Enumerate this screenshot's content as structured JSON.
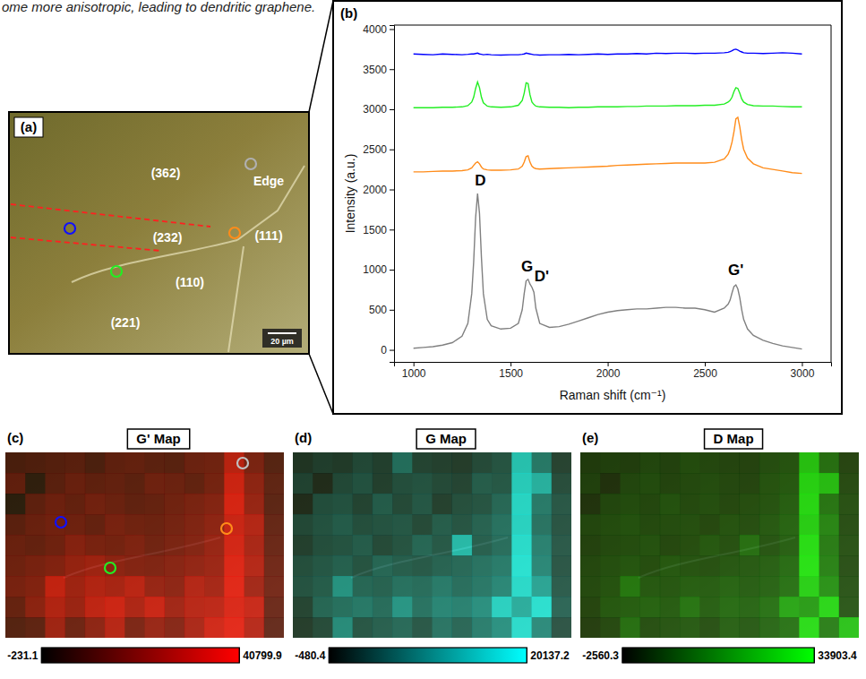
{
  "caption": "ome more anisotropic, leading to dendritic graphene.",
  "micrograph": {
    "panel_label": "(a)",
    "labels": [
      "(362)",
      "Edge",
      "(232)",
      "(111)",
      "(110)",
      "(221)"
    ],
    "scale_bar": "20 µm"
  },
  "chart_data": [
    {
      "type": "line",
      "panel_label": "(b)",
      "x_label": "Raman shift (cm⁻¹)",
      "y_label": "Intensity (a.u.)",
      "x": [
        1000,
        1050,
        1100,
        1150,
        1200,
        1250,
        1280,
        1300,
        1310,
        1320,
        1330,
        1340,
        1350,
        1360,
        1380,
        1400,
        1450,
        1500,
        1540,
        1560,
        1570,
        1580,
        1590,
        1600,
        1610,
        1620,
        1630,
        1650,
        1700,
        1750,
        1800,
        1850,
        1900,
        1950,
        2000,
        2050,
        2100,
        2150,
        2200,
        2250,
        2300,
        2350,
        2400,
        2450,
        2500,
        2550,
        2600,
        2620,
        2630,
        2640,
        2650,
        2660,
        2670,
        2680,
        2690,
        2700,
        2720,
        2750,
        2800,
        2850,
        2900,
        2950,
        3000
      ],
      "series": [
        {
          "color": "#0000ff",
          "values": [
            3690,
            3685,
            3680,
            3690,
            3685,
            3680,
            3685,
            3690,
            3690,
            3695,
            3700,
            3690,
            3685,
            3680,
            3685,
            3680,
            3675,
            3680,
            3680,
            3685,
            3690,
            3700,
            3695,
            3690,
            3685,
            3680,
            3680,
            3675,
            3680,
            3680,
            3685,
            3680,
            3685,
            3690,
            3685,
            3690,
            3690,
            3695,
            3690,
            3700,
            3695,
            3700,
            3700,
            3695,
            3700,
            3700,
            3705,
            3710,
            3720,
            3730,
            3745,
            3750,
            3740,
            3725,
            3715,
            3705,
            3700,
            3700,
            3695,
            3700,
            3705,
            3700,
            3690
          ]
        },
        {
          "color": "#22ee22",
          "values": [
            3020,
            3020,
            3020,
            3025,
            3025,
            3030,
            3045,
            3090,
            3150,
            3260,
            3340,
            3270,
            3150,
            3080,
            3040,
            3030,
            3025,
            3030,
            3050,
            3110,
            3200,
            3330,
            3320,
            3180,
            3090,
            3060,
            3040,
            3030,
            3025,
            3025,
            3020,
            3025,
            3025,
            3030,
            3030,
            3030,
            3035,
            3035,
            3040,
            3040,
            3040,
            3045,
            3045,
            3045,
            3050,
            3050,
            3065,
            3090,
            3110,
            3150,
            3220,
            3270,
            3260,
            3200,
            3130,
            3090,
            3060,
            3045,
            3040,
            3040,
            3035,
            3030,
            3030
          ]
        },
        {
          "color": "#ff8c1a",
          "values": [
            2220,
            2220,
            2225,
            2230,
            2230,
            2235,
            2245,
            2270,
            2300,
            2330,
            2345,
            2320,
            2280,
            2255,
            2245,
            2240,
            2240,
            2245,
            2255,
            2290,
            2340,
            2410,
            2420,
            2340,
            2290,
            2270,
            2260,
            2255,
            2260,
            2265,
            2270,
            2275,
            2280,
            2285,
            2290,
            2300,
            2305,
            2310,
            2315,
            2320,
            2325,
            2330,
            2330,
            2330,
            2330,
            2340,
            2380,
            2440,
            2500,
            2590,
            2720,
            2880,
            2900,
            2780,
            2620,
            2500,
            2390,
            2320,
            2270,
            2250,
            2230,
            2210,
            2200
          ]
        },
        {
          "color": "#808080",
          "values": [
            20,
            30,
            40,
            60,
            90,
            170,
            330,
            700,
            1100,
            1650,
            1950,
            1700,
            1150,
            700,
            380,
            300,
            260,
            270,
            330,
            500,
            700,
            860,
            880,
            820,
            780,
            720,
            520,
            330,
            280,
            290,
            320,
            360,
            400,
            440,
            470,
            490,
            500,
            510,
            510,
            520,
            530,
            530,
            520,
            520,
            500,
            470,
            520,
            570,
            620,
            710,
            790,
            810,
            760,
            650,
            500,
            380,
            260,
            180,
            120,
            80,
            50,
            30,
            10
          ]
        }
      ],
      "xlim": [
        900,
        3150
      ],
      "ylim": [
        -150,
        4050
      ],
      "xticks": [
        1000,
        1500,
        2000,
        2500,
        3000
      ],
      "yticks": [
        0,
        500,
        1000,
        1500,
        2000,
        2500,
        3000,
        3500,
        4000
      ],
      "annotations": [
        {
          "text": "D",
          "x": 1345,
          "y": 2050
        },
        {
          "text": "G",
          "x": 1585,
          "y": 980
        },
        {
          "text": "D'",
          "x": 1660,
          "y": 850
        },
        {
          "text": "G'",
          "x": 2660,
          "y": 930
        }
      ],
      "grid": false
    },
    {
      "type": "heatmap",
      "panel_label": "(c)",
      "title": "G' Map",
      "color": "#ff0000",
      "cells": [
        [
          9000,
          10000,
          11000,
          12000,
          9000,
          13000,
          14000,
          12000,
          11000,
          15000,
          16000,
          32000,
          18000,
          10000
        ],
        [
          14000,
          3000,
          12000,
          15000,
          13000,
          14000,
          12000,
          16000,
          15000,
          13000,
          17000,
          36000,
          22000,
          12000
        ],
        [
          2000,
          13000,
          16000,
          14000,
          17000,
          15000,
          13000,
          14000,
          16000,
          18000,
          20000,
          38000,
          24000,
          11000
        ],
        [
          12000,
          15000,
          17000,
          16000,
          14000,
          18000,
          16000,
          15000,
          17000,
          19000,
          22000,
          35000,
          30000,
          13000
        ],
        [
          15000,
          14000,
          16000,
          21000,
          18000,
          17000,
          19000,
          16000,
          18000,
          20000,
          24000,
          37000,
          28000,
          14000
        ],
        [
          16000,
          18000,
          20000,
          24000,
          26000,
          22000,
          20000,
          19000,
          21000,
          23000,
          25000,
          39000,
          30000,
          15000
        ],
        [
          18000,
          20000,
          34000,
          26000,
          30000,
          28000,
          32000,
          24000,
          22000,
          30000,
          27000,
          40000,
          26000,
          16000
        ],
        [
          14000,
          22000,
          30000,
          25000,
          33000,
          36000,
          29000,
          35000,
          26000,
          31000,
          32000,
          38000,
          34000,
          14000
        ],
        [
          10000,
          12000,
          26000,
          15000,
          22000,
          31000,
          18000,
          24000,
          20000,
          28000,
          36000,
          40000,
          30000,
          12000
        ]
      ],
      "colorbar": {
        "range": [
          -231.1,
          40799.9
        ],
        "ticks": [
          -231.1,
          40799.9
        ]
      }
    },
    {
      "type": "heatmap",
      "panel_label": "(d)",
      "title": "G Map",
      "color": "#00ffff",
      "cells": [
        [
          2000,
          3000,
          2500,
          4000,
          3000,
          8000,
          3500,
          3000,
          2500,
          4000,
          5000,
          17000,
          9000,
          3000
        ],
        [
          3500,
          1000,
          4000,
          5000,
          3000,
          4500,
          5000,
          4000,
          3500,
          6000,
          5500,
          18000,
          15000,
          4000
        ],
        [
          1000,
          4500,
          5000,
          3500,
          6000,
          4000,
          5500,
          3000,
          4500,
          5000,
          7000,
          19000,
          9000,
          5000
        ],
        [
          4000,
          5000,
          6000,
          4500,
          5000,
          5500,
          4000,
          6000,
          5000,
          6500,
          8000,
          18500,
          8000,
          4500
        ],
        [
          3000,
          4500,
          5000,
          6000,
          4000,
          5000,
          7000,
          5500,
          16000,
          6000,
          7500,
          19500,
          9500,
          5000
        ],
        [
          4500,
          5500,
          6500,
          5000,
          7000,
          6000,
          5500,
          6500,
          7000,
          8000,
          9000,
          20000,
          10000,
          4500
        ],
        [
          5000,
          6000,
          12000,
          7000,
          6500,
          8000,
          7500,
          9000,
          7500,
          8500,
          10000,
          19000,
          13000,
          5000
        ],
        [
          3500,
          7000,
          8000,
          9000,
          7500,
          12000,
          8000,
          10000,
          9500,
          11000,
          18000,
          14000,
          19500,
          6000
        ],
        [
          2500,
          4000,
          11000,
          5000,
          6000,
          7000,
          5000,
          8000,
          6500,
          9000,
          11000,
          19000,
          10000,
          4000
        ]
      ],
      "colorbar": {
        "range": [
          -480.4,
          20137.2
        ],
        "ticks": [
          -480.4,
          20137.2
        ]
      }
    },
    {
      "type": "heatmap",
      "panel_label": "(e)",
      "title": "D Map",
      "color": "#00ff00",
      "cells": [
        [
          3000,
          4000,
          3500,
          5000,
          4000,
          6000,
          5000,
          4500,
          4000,
          6000,
          7000,
          28000,
          12000,
          4000
        ],
        [
          4000,
          1000,
          5000,
          6000,
          4500,
          5500,
          6000,
          5000,
          4500,
          7000,
          8000,
          31000,
          27000,
          5000
        ],
        [
          1500,
          5000,
          6000,
          5000,
          7000,
          5500,
          6500,
          5000,
          6000,
          7000,
          9000,
          32000,
          13000,
          6000
        ],
        [
          5000,
          6000,
          7000,
          5500,
          6000,
          6500,
          5000,
          7000,
          6000,
          8000,
          10000,
          30000,
          16000,
          5500
        ],
        [
          4000,
          5500,
          6000,
          7000,
          5000,
          6000,
          8000,
          6500,
          12000,
          7000,
          9000,
          33000,
          14000,
          6000
        ],
        [
          5000,
          6500,
          7500,
          6000,
          8000,
          7000,
          6500,
          7500,
          8000,
          9000,
          11000,
          33900,
          15000,
          5500
        ],
        [
          5500,
          7000,
          14000,
          8000,
          7500,
          9000,
          8500,
          10000,
          8500,
          9500,
          12000,
          30000,
          18000,
          6000
        ],
        [
          4500,
          8000,
          9000,
          10000,
          8500,
          13000,
          9000,
          11000,
          10000,
          12000,
          22000,
          20000,
          31000,
          6500
        ],
        [
          3000,
          5000,
          12000,
          6000,
          7000,
          8000,
          6000,
          9000,
          7500,
          10000,
          12000,
          32000,
          14000,
          27000
        ]
      ],
      "colorbar": {
        "range": [
          -2560.3,
          33903.4
        ],
        "ticks": [
          -2560.3,
          33903.4
        ]
      }
    }
  ]
}
